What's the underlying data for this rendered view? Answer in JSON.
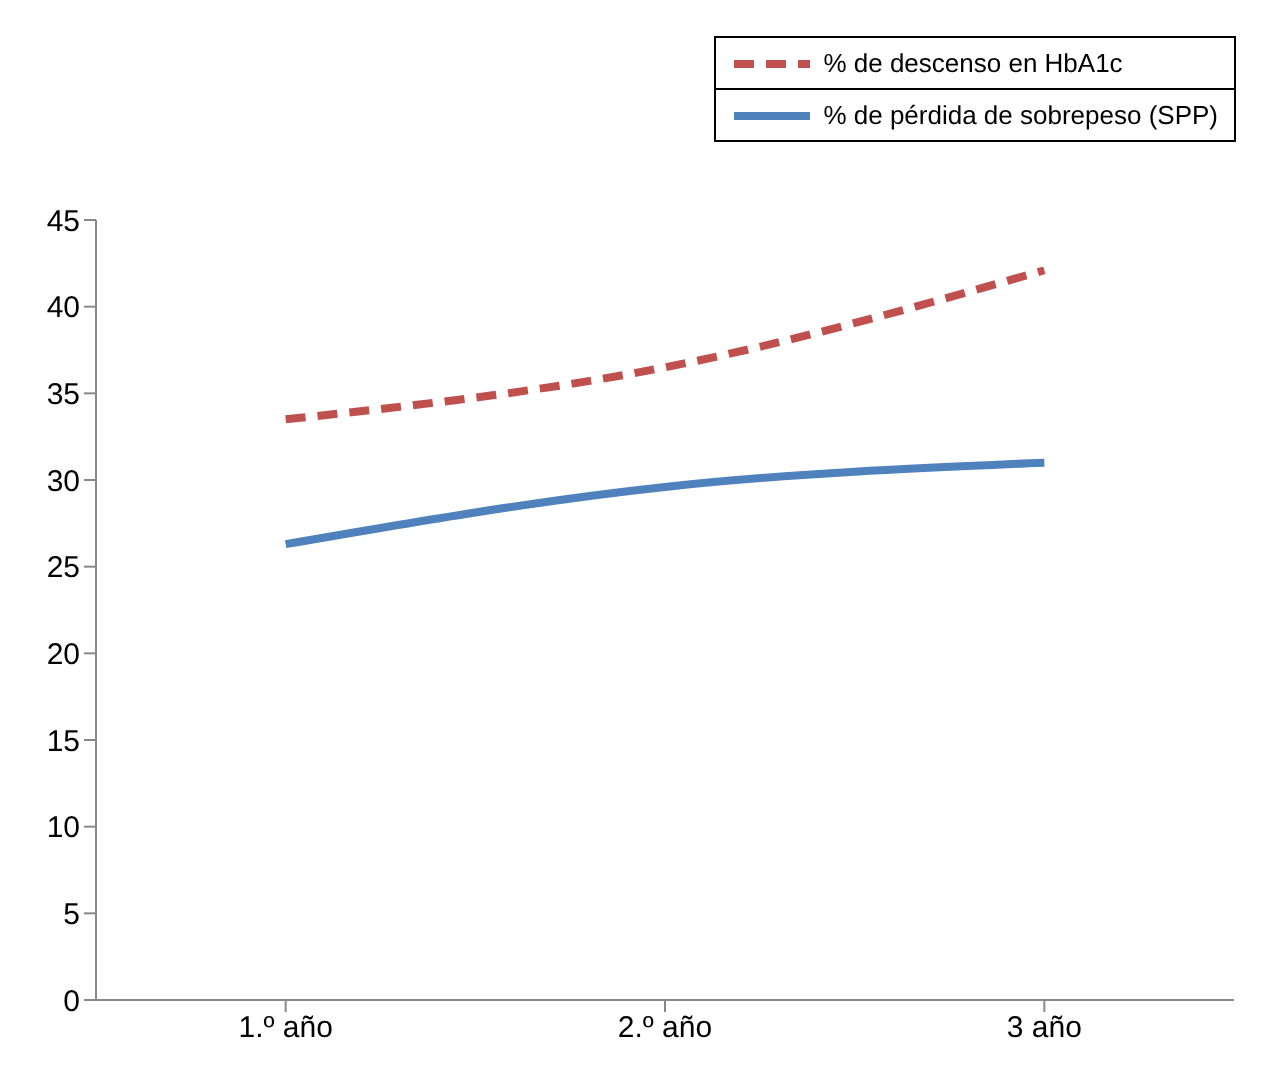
{
  "chart_data": {
    "type": "line",
    "categories": [
      "1.º año",
      "2.º año",
      "3 año"
    ],
    "series": [
      {
        "name": "% de descenso en HbA1c",
        "color": "#c0504d",
        "line_style": "dashed",
        "values": [
          33.5,
          36.5,
          42.1
        ]
      },
      {
        "name": "% de pérdida de sobrepeso (SPP)",
        "color": "#4f81bd",
        "line_style": "solid",
        "values": [
          26.3,
          29.6,
          31.0
        ]
      }
    ],
    "ylim": [
      0,
      45
    ],
    "yticks": [
      0,
      5,
      10,
      15,
      20,
      25,
      30,
      35,
      40,
      45
    ],
    "grid": false,
    "legend": "top right",
    "marker": "none"
  }
}
